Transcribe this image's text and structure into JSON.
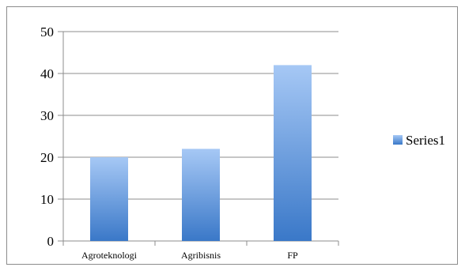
{
  "chart_data": {
    "type": "bar",
    "categories": [
      "Agroteknologi",
      "Agribisnis",
      "FP"
    ],
    "series": [
      {
        "name": "Series1",
        "values": [
          20,
          22,
          42
        ]
      }
    ],
    "ylim": [
      0,
      50
    ],
    "yticks": [
      "0",
      "10",
      "20",
      "30",
      "40",
      "50"
    ],
    "grid": true,
    "legend": "right",
    "colors": {
      "bar_top": "#a6c8f5",
      "bar_bottom": "#3a78c8",
      "grid": "#8c8c8c",
      "axis": "#8c8c8c"
    }
  }
}
